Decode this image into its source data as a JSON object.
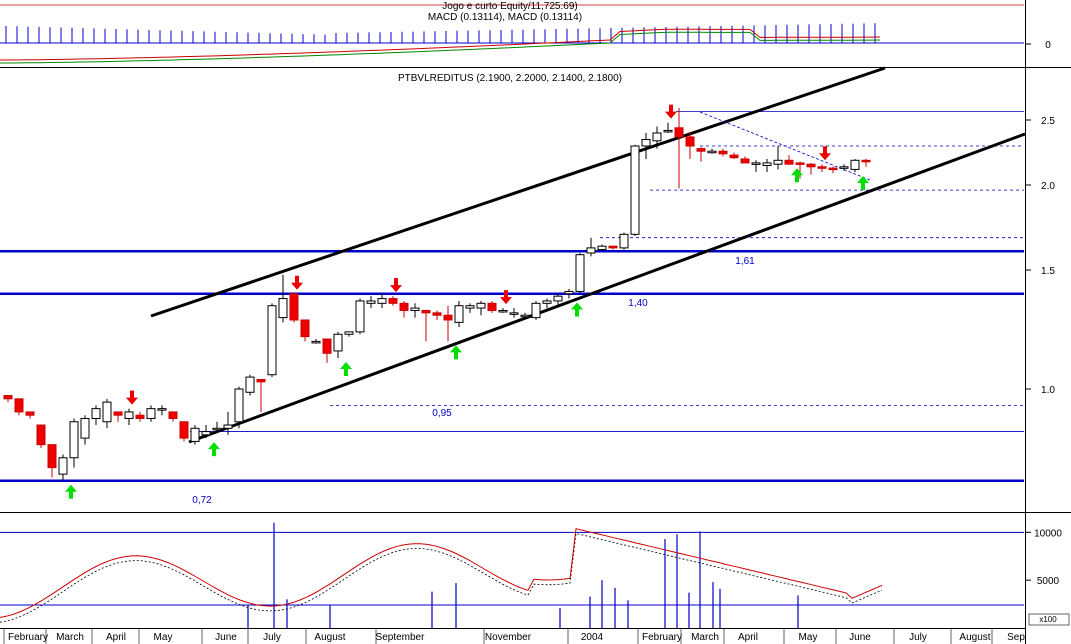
{
  "chart_data": [
    {
      "panel": "macd",
      "type": "line",
      "title_line1": "Jogo e curto Equity/11,725.69)",
      "title_line2": "MACD (0.13114), MACD (0.13114)",
      "ytick_labels": [
        "0"
      ],
      "grid": false
    },
    {
      "panel": "price",
      "type": "candlestick",
      "title": "PTBVLREDITUS (2.1900, 2.2000, 2.1400, 2.1800)",
      "ytick_labels": [
        "2.5",
        "2.0",
        "1.5",
        "1.0"
      ],
      "yticks": [
        2.5,
        2.0,
        1.5,
        1.0
      ],
      "ylim": [
        0.6,
        2.7
      ],
      "support_resistance": [
        {
          "value": 1.61,
          "label": "1,61",
          "color": "#0000cc"
        },
        {
          "value": 1.4,
          "label": "1,40",
          "color": "#0000cc"
        },
        {
          "value": 0.95,
          "label": "0,95",
          "color": "#0000cc"
        },
        {
          "value": 0.72,
          "label": "0,72",
          "color": "#0000cc"
        }
      ],
      "reference_lines": [
        2.57,
        2.3,
        1.97,
        1.69,
        0.87
      ],
      "ohlc": [
        [
          0.98,
          0.98,
          0.96,
          0.97
        ],
        [
          0.97,
          0.97,
          0.92,
          0.93
        ],
        [
          0.93,
          0.93,
          0.91,
          0.92
        ],
        [
          0.89,
          0.89,
          0.82,
          0.83
        ],
        [
          0.83,
          0.83,
          0.73,
          0.76
        ],
        [
          0.74,
          0.8,
          0.72,
          0.79
        ],
        [
          0.79,
          0.91,
          0.76,
          0.9
        ],
        [
          0.85,
          0.92,
          0.83,
          0.91
        ],
        [
          0.91,
          0.95,
          0.89,
          0.94
        ],
        [
          0.9,
          0.97,
          0.88,
          0.96
        ],
        [
          0.93,
          0.93,
          0.9,
          0.92
        ],
        [
          0.91,
          0.94,
          0.89,
          0.93
        ],
        [
          0.92,
          0.93,
          0.9,
          0.91
        ],
        [
          0.91,
          0.95,
          0.9,
          0.94
        ],
        [
          0.94,
          0.95,
          0.92,
          0.94
        ],
        [
          0.93,
          0.93,
          0.9,
          0.91
        ],
        [
          0.9,
          0.9,
          0.84,
          0.85
        ],
        [
          0.84,
          0.89,
          0.83,
          0.88
        ],
        [
          0.86,
          0.89,
          0.85,
          0.87
        ],
        [
          0.88,
          0.9,
          0.87,
          0.88
        ],
        [
          0.88,
          0.93,
          0.86,
          0.89
        ],
        [
          0.9,
          1.01,
          0.88,
          1.0
        ],
        [
          0.99,
          1.06,
          0.98,
          1.05
        ],
        [
          1.04,
          1.04,
          0.93,
          1.03
        ],
        [
          1.06,
          1.36,
          1.05,
          1.35
        ],
        [
          1.3,
          1.48,
          1.28,
          1.38
        ],
        [
          1.4,
          1.4,
          1.28,
          1.29
        ],
        [
          1.29,
          1.29,
          1.2,
          1.22
        ],
        [
          1.2,
          1.21,
          1.19,
          1.2
        ],
        [
          1.21,
          1.21,
          1.11,
          1.15
        ],
        [
          1.16,
          1.24,
          1.13,
          1.23
        ],
        [
          1.23,
          1.24,
          1.22,
          1.24
        ],
        [
          1.24,
          1.38,
          1.23,
          1.37
        ],
        [
          1.36,
          1.39,
          1.34,
          1.37
        ],
        [
          1.36,
          1.4,
          1.34,
          1.38
        ],
        [
          1.38,
          1.39,
          1.35,
          1.36
        ],
        [
          1.36,
          1.37,
          1.3,
          1.33
        ],
        [
          1.33,
          1.36,
          1.3,
          1.34
        ],
        [
          1.33,
          1.33,
          1.2,
          1.32
        ],
        [
          1.32,
          1.33,
          1.29,
          1.31
        ],
        [
          1.31,
          1.35,
          1.2,
          1.29
        ],
        [
          1.28,
          1.37,
          1.26,
          1.35
        ],
        [
          1.34,
          1.36,
          1.32,
          1.35
        ],
        [
          1.34,
          1.37,
          1.31,
          1.36
        ],
        [
          1.36,
          1.37,
          1.32,
          1.33
        ],
        [
          1.33,
          1.34,
          1.32,
          1.33
        ],
        [
          1.32,
          1.34,
          1.3,
          1.32
        ],
        [
          1.31,
          1.32,
          1.31,
          1.31
        ],
        [
          1.3,
          1.37,
          1.29,
          1.36
        ],
        [
          1.36,
          1.38,
          1.34,
          1.37
        ],
        [
          1.37,
          1.4,
          1.35,
          1.39
        ],
        [
          1.4,
          1.42,
          1.38,
          1.41
        ],
        [
          1.41,
          1.6,
          1.4,
          1.59
        ],
        [
          1.6,
          1.69,
          1.58,
          1.63
        ],
        [
          1.62,
          1.65,
          1.61,
          1.64
        ],
        [
          1.64,
          1.64,
          1.62,
          1.63
        ],
        [
          1.63,
          1.72,
          1.62,
          1.71
        ],
        [
          1.71,
          2.31,
          1.7,
          2.3
        ],
        [
          2.3,
          2.4,
          2.2,
          2.35
        ],
        [
          2.34,
          2.45,
          2.28,
          2.4
        ],
        [
          2.42,
          2.48,
          2.4,
          2.42
        ],
        [
          2.44,
          2.6,
          1.98,
          2.37
        ],
        [
          2.37,
          2.41,
          2.2,
          2.3
        ],
        [
          2.28,
          2.29,
          2.18,
          2.26
        ],
        [
          2.26,
          2.28,
          2.24,
          2.26
        ],
        [
          2.26,
          2.28,
          2.22,
          2.24
        ],
        [
          2.23,
          2.25,
          2.2,
          2.21
        ],
        [
          2.2,
          2.22,
          2.17,
          2.17
        ],
        [
          2.16,
          2.19,
          2.1,
          2.17
        ],
        [
          2.15,
          2.2,
          2.1,
          2.17
        ],
        [
          2.16,
          2.3,
          2.12,
          2.19
        ],
        [
          2.19,
          2.23,
          2.16,
          2.16
        ],
        [
          2.17,
          2.18,
          2.05,
          2.16
        ],
        [
          2.16,
          2.17,
          2.08,
          2.14
        ],
        [
          2.14,
          2.16,
          2.1,
          2.13
        ],
        [
          2.13,
          2.14,
          2.09,
          2.12
        ],
        [
          2.13,
          2.16,
          2.11,
          2.14
        ],
        [
          2.12,
          2.2,
          2.1,
          2.19
        ],
        [
          2.19,
          2.2,
          2.14,
          2.18
        ]
      ],
      "buy_arrow_bars": [
        5,
        18,
        30,
        40,
        51,
        71,
        77
      ],
      "sell_arrow_bars": [
        11,
        26,
        35,
        45,
        60,
        74
      ],
      "x_month_labels": [
        "February",
        "March",
        "April",
        "May",
        "June",
        "July",
        "August",
        "September",
        "November",
        "2004",
        "February",
        "March",
        "April",
        "May",
        "June",
        "July",
        "August",
        "Sep"
      ]
    },
    {
      "panel": "volume",
      "type": "line",
      "ytick_labels": [
        "10000",
        "5000"
      ],
      "yticks": [
        10000,
        5000
      ],
      "ylim": [
        0,
        11500
      ],
      "unit_label": "x100"
    }
  ]
}
